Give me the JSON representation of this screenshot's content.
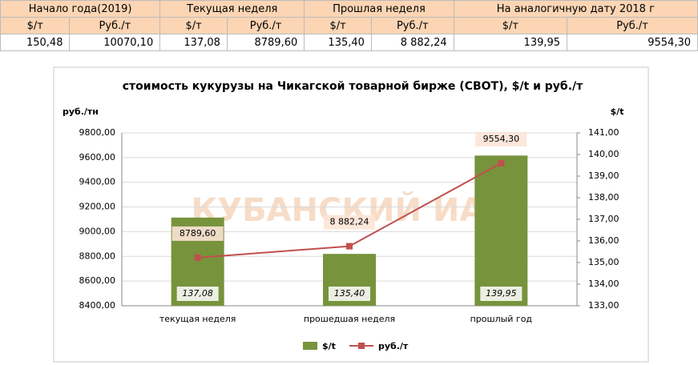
{
  "table": {
    "header": [
      "Начало года(2019)",
      "Текущая неделя",
      "Прошлая неделя",
      "На аналогичную дату 2018 г"
    ],
    "subheader": [
      "$/т",
      "Руб./т",
      "$/т",
      "Руб./т",
      "$/т",
      "Руб./т",
      "$/т",
      "Руб./т"
    ],
    "row": [
      "150,48",
      "10070,10",
      "137,08",
      "8789,60",
      "135,40",
      "8 882,24",
      "139,95",
      "9554,30"
    ]
  },
  "chart_data": {
    "type": "combo",
    "title": "стоимость кукурузы на Чикагской товарной бирже (CBOT), $/t и руб./т",
    "watermark": "КУБАНСКИЙ ИАЦ",
    "ylabel": "руб./тн",
    "y2label": "$/t",
    "categories": [
      "текущая неделя",
      "прошедшая неделя",
      "прошлый год"
    ],
    "series": [
      {
        "name": "$/t",
        "type": "bar",
        "axis": "y2",
        "color": "#77933c",
        "values": [
          137.08,
          135.4,
          139.95
        ],
        "value_labels": [
          "137,08",
          "135,40",
          "139,95"
        ]
      },
      {
        "name": "руб./т",
        "type": "line",
        "color": "#c0504d",
        "values": [
          8789.6,
          8882.24,
          9554.3
        ],
        "value_labels": [
          "8789,60",
          "8 882,24",
          "9554,30"
        ]
      }
    ],
    "ylim": [
      8400,
      9800
    ],
    "yticks": [
      {
        "value": 8400,
        "label": "8400,00"
      },
      {
        "value": 8600,
        "label": "8600,00"
      },
      {
        "value": 8800,
        "label": "8800,00"
      },
      {
        "value": 9000,
        "label": "9000,00"
      },
      {
        "value": 9200,
        "label": "9200,00"
      },
      {
        "value": 9400,
        "label": "9400,00"
      },
      {
        "value": 9600,
        "label": "9600,00"
      },
      {
        "value": 9800,
        "label": "9800,00"
      }
    ],
    "y2lim": [
      133,
      141
    ],
    "y2ticks": [
      {
        "value": 133,
        "label": "133,00"
      },
      {
        "value": 134,
        "label": "134,00"
      },
      {
        "value": 135,
        "label": "135,00"
      },
      {
        "value": 136,
        "label": "136,00"
      },
      {
        "value": 137,
        "label": "137,00"
      },
      {
        "value": 138,
        "label": "138,00"
      },
      {
        "value": 139,
        "label": "139,00"
      },
      {
        "value": 140,
        "label": "140,00"
      },
      {
        "value": 141,
        "label": "141,00"
      }
    ],
    "grid": true,
    "legend": "bottom"
  }
}
